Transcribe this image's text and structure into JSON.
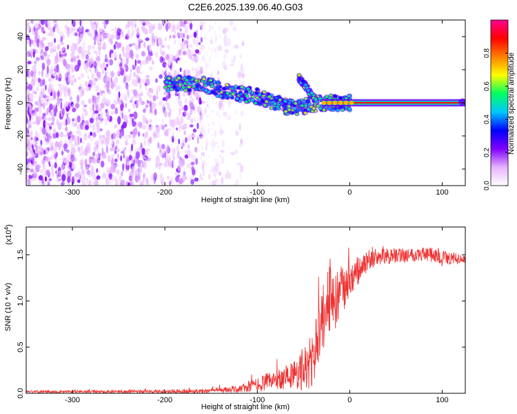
{
  "title": "C2E6.2025.139.06.40.G03",
  "chart_data": [
    {
      "type": "heatmap",
      "xlabel": "Height of straight line (km)",
      "ylabel": "Frequency (Hz)",
      "xlim": [
        -350,
        125
      ],
      "ylim": [
        -50,
        50
      ],
      "x_ticks": [
        -300,
        -200,
        -100,
        0,
        100
      ],
      "y_ticks": [
        -40,
        -20,
        0,
        20,
        40
      ],
      "x_tick_labels": [
        "-300",
        "-200",
        "-100",
        "0",
        "100"
      ],
      "y_tick_labels": [
        "-40",
        "-20",
        "0",
        "20",
        "40"
      ],
      "colorbar": {
        "label": "Normalized spectral amplitude",
        "range": [
          0,
          1
        ],
        "ticks": [
          0.0,
          0.2,
          0.4,
          0.6,
          0.8
        ],
        "tick_labels": [
          "0.0",
          "0.2",
          "0.4",
          "0.6",
          "0.8"
        ],
        "colors": [
          "#ffffff",
          "#e6b3ff",
          "#8000ff",
          "#0000ff",
          "#00c8ff",
          "#00ff60",
          "#ffff00",
          "#ff8000",
          "#ff0000",
          "#ff0090"
        ]
      },
      "features": {
        "noise_region_x": [
          -350,
          -160
        ],
        "trace_points": [
          [
            -200,
            11
          ],
          [
            -190,
            12
          ],
          [
            -180,
            11
          ],
          [
            -170,
            12
          ],
          [
            -160,
            11
          ],
          [
            -150,
            10
          ],
          [
            -140,
            8
          ],
          [
            -130,
            6
          ],
          [
            -120,
            5
          ],
          [
            -110,
            5
          ],
          [
            -100,
            4
          ],
          [
            -90,
            2
          ],
          [
            -80,
            0
          ],
          [
            -70,
            -2
          ],
          [
            -60,
            -3
          ],
          [
            -50,
            -2
          ],
          [
            -40,
            -1
          ],
          [
            -30,
            0
          ],
          [
            -20,
            0
          ],
          [
            -10,
            0
          ],
          [
            0,
            0
          ]
        ],
        "secondary_trace_points": [
          [
            -55,
            15
          ],
          [
            -50,
            12
          ],
          [
            -45,
            8
          ],
          [
            -40,
            4
          ],
          [
            -35,
            0
          ]
        ],
        "steady_tone": {
          "x": [
            -30,
            125
          ],
          "freq": 0,
          "amplitude": 0.9
        }
      }
    },
    {
      "type": "line",
      "xlabel": "Height of straight line (km)",
      "ylabel": "SNR (10 * v/v)",
      "y_multiplier": "(x10",
      "y_multiplier_exp": "4",
      "y_multiplier_close": ")",
      "xlim": [
        -350,
        125
      ],
      "ylim": [
        0,
        1.8
      ],
      "x_ticks": [
        -300,
        -200,
        -100,
        0,
        100
      ],
      "y_ticks": [
        0.0,
        0.5,
        1.0,
        1.5
      ],
      "x_tick_labels": [
        "-300",
        "-200",
        "-100",
        "0",
        "100"
      ],
      "y_tick_labels": [
        "0.0",
        "0.5",
        "1.0",
        "1.5"
      ],
      "color": "#ee3333",
      "envelope": {
        "x": [
          -350,
          -250,
          -200,
          -150,
          -120,
          -100,
          -80,
          -60,
          -50,
          -40,
          -35,
          -30,
          -25,
          -20,
          -15,
          -10,
          -5,
          0,
          10,
          20,
          30,
          50,
          80,
          100,
          125
        ],
        "base": [
          0.02,
          0.02,
          0.02,
          0.03,
          0.05,
          0.1,
          0.16,
          0.22,
          0.28,
          0.38,
          0.6,
          0.8,
          1.0,
          1.1,
          1.0,
          1.1,
          1.15,
          1.22,
          1.35,
          1.45,
          1.48,
          1.5,
          1.52,
          1.48,
          1.45
        ],
        "amp": [
          0.015,
          0.02,
          0.03,
          0.03,
          0.05,
          0.1,
          0.14,
          0.2,
          0.3,
          0.4,
          0.45,
          0.45,
          0.45,
          0.45,
          0.4,
          0.4,
          0.3,
          0.25,
          0.2,
          0.14,
          0.12,
          0.1,
          0.1,
          0.12,
          0.05
        ]
      }
    }
  ]
}
